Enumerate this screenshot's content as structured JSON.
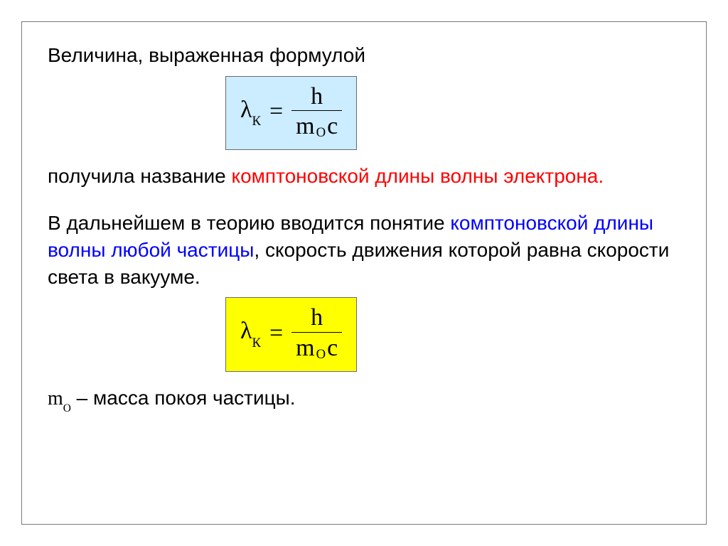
{
  "text": {
    "intro": "Величина, выраженная формулой",
    "after_formula_1a": "получила название ",
    "after_formula_1b_red": "комптоновской длины волны электрона.",
    "para2_a": "В дальнейшем в теорию вводится понятие ",
    "para2_b_blue": "комптоновской длины волны любой частицы",
    "para2_c": ", скорость движения которой равна скорости света в вакууме.",
    "mass_note_a": "m",
    "mass_note_sub": "О",
    "mass_note_b": " – масса покоя частицы."
  },
  "formula": {
    "lambda": "λ",
    "lambda_sub": "К",
    "equals": "=",
    "numerator": "h",
    "den_m": "m",
    "den_sub": "О",
    "den_c": "c"
  },
  "style": {
    "box1_bg": "#ccecff",
    "box2_bg": "#ffff00",
    "text_color": "#000000",
    "red": "#ff0000",
    "blue": "#0000ff",
    "border_color": "#7a7a7a",
    "body_font_size": 28,
    "formula_font_size": 34
  }
}
